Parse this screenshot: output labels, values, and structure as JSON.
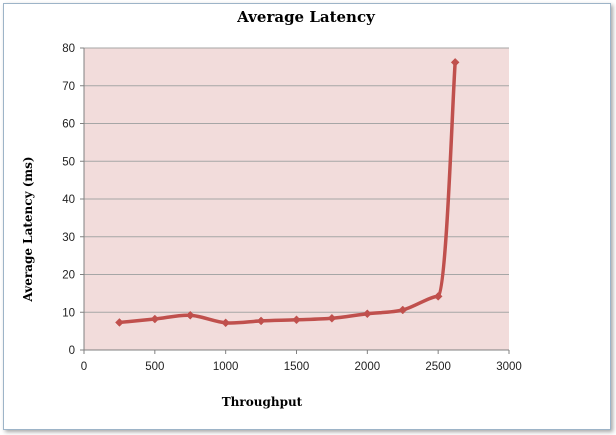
{
  "chart_data": {
    "type": "line",
    "title": "Average Latency",
    "xlabel": "Throughput",
    "ylabel": "Average Latency (ms)",
    "xlim": [
      0,
      3000
    ],
    "ylim": [
      0,
      80
    ],
    "x_ticks": [
      0,
      500,
      1000,
      1500,
      2000,
      2500,
      3000
    ],
    "y_ticks": [
      0,
      10,
      20,
      30,
      40,
      50,
      60,
      70,
      80
    ],
    "grid": "horizontal",
    "legend": "none",
    "series": [
      {
        "x": [
          250,
          500,
          750,
          1000,
          1250,
          1500,
          1750,
          2000,
          2250,
          2500,
          2620
        ],
        "y": [
          7.3,
          8.2,
          9.2,
          7.2,
          7.7,
          8.0,
          8.4,
          9.6,
          10.6,
          14.2,
          76.2
        ],
        "color": "#c0504d"
      }
    ],
    "plot_background": "#f2dcdb",
    "grid_color": "#a6a6a6"
  }
}
